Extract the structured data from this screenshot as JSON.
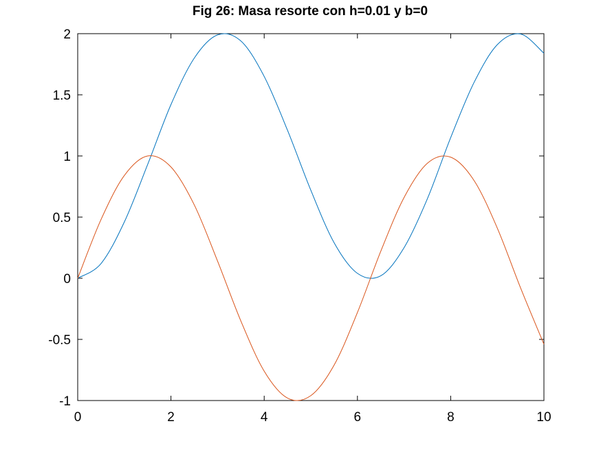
{
  "chart_data": {
    "type": "line",
    "title": "Fig 26: Masa resorte con h=0.01 y b=0",
    "xlabel": "",
    "ylabel": "",
    "xlim": [
      0,
      10
    ],
    "ylim": [
      -1,
      2
    ],
    "xticks": [
      0,
      2,
      4,
      6,
      8,
      10
    ],
    "xtick_labels": [
      "0",
      "2",
      "4",
      "6",
      "8",
      "10"
    ],
    "yticks": [
      -1,
      -0.5,
      0,
      0.5,
      1,
      1.5,
      2
    ],
    "ytick_labels": [
      "-1",
      "-0.5",
      "0",
      "0.5",
      "1",
      "1.5",
      "2"
    ],
    "grid": false,
    "legend": "none",
    "x": [
      0,
      0.5,
      1,
      1.5,
      2,
      2.5,
      3,
      3.5,
      4,
      4.5,
      5,
      5.5,
      6,
      6.5,
      7,
      7.5,
      8,
      8.5,
      9,
      9.5,
      10
    ],
    "series": [
      {
        "color": "#0072bd",
        "values": [
          0,
          0.12,
          0.46,
          0.93,
          1.42,
          1.8,
          1.99,
          1.94,
          1.65,
          1.21,
          0.72,
          0.29,
          0.04,
          0.02,
          0.25,
          0.65,
          1.15,
          1.6,
          1.91,
          1.997,
          1.84
        ]
      },
      {
        "color": "#d95319",
        "values": [
          0,
          0.48,
          0.84,
          1.0,
          0.91,
          0.6,
          0.14,
          -0.35,
          -0.76,
          -0.98,
          -0.96,
          -0.71,
          -0.28,
          0.22,
          0.66,
          0.94,
          0.99,
          0.8,
          0.41,
          -0.08,
          -0.54
        ]
      }
    ]
  }
}
